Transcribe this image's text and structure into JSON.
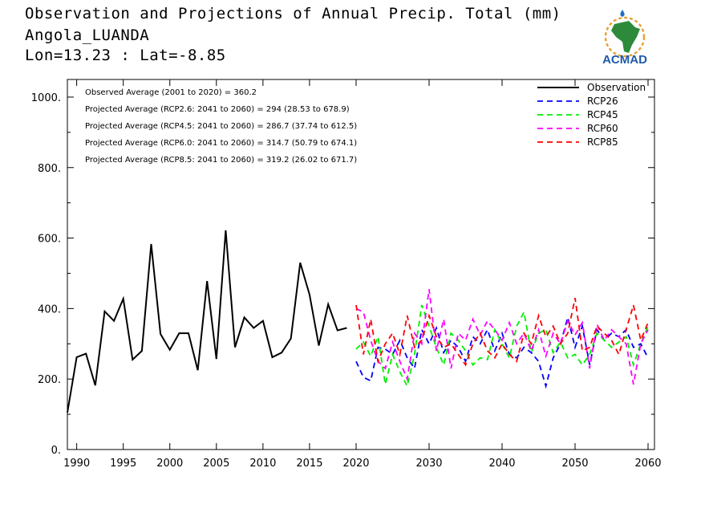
{
  "header": {
    "title": "Observation and Projections of Annual Precip. Total (mm)",
    "location": "Angola_LUANDA",
    "coords": "Lon=13.23 : Lat=-8.85"
  },
  "logo": {
    "text": "ACMAD",
    "icon": "africa-map-logo"
  },
  "colors": {
    "Observation": "#000000",
    "RCP26": "#0000ff",
    "RCP45": "#00ee00",
    "RCP60": "#ff00ff",
    "RCP85": "#ff0000"
  },
  "chart_data": {
    "type": "line",
    "title": "Observation and Projections of Annual Precip. Total (mm)",
    "xlim": [
      1989,
      2060
    ],
    "ylim": [
      0,
      1050
    ],
    "x_ticks": [
      1990,
      1995,
      2000,
      2005,
      2010,
      2015,
      2020,
      2030,
      2040,
      2050,
      2060
    ],
    "y_ticks": [
      0,
      200,
      400,
      600,
      800,
      1000
    ],
    "y_tick_labels": [
      "0.",
      "200.",
      "400.",
      "600.",
      "800.",
      "1000."
    ],
    "legend_position": "top-right",
    "grid": false,
    "annotations": [
      "Observed Average (2001 to 2020) = 360.2",
      "Projected Average (RCP2.6: 2041 to 2060) = 294 (28.53 to 678.9)",
      "Projected Average (RCP4.5: 2041 to 2060) = 286.7 (37.74 to 612.5)",
      "Projected Average (RCP6.0: 2041 to 2060) = 314.7 (50.79 to 674.1)",
      "Projected Average (RCP8.5: 2041 to 2060) = 319.2 (26.02 to 671.7)"
    ],
    "series": [
      {
        "name": "Observation",
        "style": "solid",
        "x": [
          1989,
          1990,
          1991,
          1992,
          1993,
          1994,
          1995,
          1996,
          1997,
          1998,
          1999,
          2000,
          2001,
          2002,
          2003,
          2004,
          2005,
          2006,
          2007,
          2008,
          2009,
          2010,
          2011,
          2012,
          2013,
          2014,
          2015,
          2016,
          2017,
          2018,
          2019
        ],
        "values": [
          105,
          262,
          272,
          182,
          392,
          365,
          428,
          255,
          280,
          583,
          328,
          283,
          330,
          330,
          225,
          478,
          257,
          622,
          290,
          375,
          345,
          365,
          262,
          275,
          315,
          530,
          440,
          295,
          412,
          338,
          345
        ]
      },
      {
        "name": "RCP26",
        "style": "dashed",
        "x": [
          2020,
          2021,
          2022,
          2023,
          2024,
          2025,
          2026,
          2027,
          2028,
          2029,
          2030,
          2031,
          2032,
          2033,
          2034,
          2035,
          2036,
          2037,
          2038,
          2039,
          2040,
          2041,
          2042,
          2043,
          2044,
          2045,
          2046,
          2047,
          2048,
          2049,
          2050,
          2051,
          2052,
          2053,
          2054,
          2055,
          2056,
          2057,
          2058,
          2059,
          2060
        ],
        "values": [
          250,
          205,
          195,
          290,
          285,
          270,
          310,
          260,
          230,
          340,
          300,
          345,
          275,
          310,
          290,
          250,
          320,
          300,
          340,
          280,
          330,
          270,
          260,
          290,
          275,
          250,
          180,
          260,
          300,
          375,
          290,
          350,
          240,
          340,
          310,
          330,
          320,
          340,
          290,
          300,
          260
        ]
      },
      {
        "name": "RCP45",
        "style": "dashed",
        "x": [
          2020,
          2021,
          2022,
          2023,
          2024,
          2025,
          2026,
          2027,
          2028,
          2029,
          2030,
          2031,
          2032,
          2033,
          2034,
          2035,
          2036,
          2037,
          2038,
          2039,
          2040,
          2041,
          2042,
          2043,
          2044,
          2045,
          2046,
          2047,
          2048,
          2049,
          2050,
          2051,
          2052,
          2053,
          2054,
          2055,
          2056,
          2057,
          2058,
          2059,
          2060
        ],
        "values": [
          285,
          305,
          265,
          320,
          185,
          270,
          220,
          180,
          270,
          410,
          350,
          290,
          240,
          330,
          310,
          280,
          240,
          260,
          255,
          340,
          300,
          260,
          350,
          390,
          275,
          330,
          340,
          275,
          305,
          260,
          270,
          240,
          270,
          330,
          310,
          290,
          305,
          320,
          240,
          300,
          350
        ]
      },
      {
        "name": "RCP60",
        "style": "dashed",
        "x": [
          2020,
          2021,
          2022,
          2023,
          2024,
          2025,
          2026,
          2027,
          2028,
          2029,
          2030,
          2031,
          2032,
          2033,
          2034,
          2035,
          2036,
          2037,
          2038,
          2039,
          2040,
          2041,
          2042,
          2043,
          2044,
          2045,
          2046,
          2047,
          2048,
          2049,
          2050,
          2051,
          2052,
          2053,
          2054,
          2055,
          2056,
          2057,
          2058,
          2059,
          2060
        ],
        "values": [
          400,
          390,
          310,
          250,
          230,
          305,
          250,
          200,
          330,
          300,
          455,
          280,
          370,
          230,
          330,
          310,
          370,
          325,
          365,
          340,
          310,
          360,
          300,
          330,
          280,
          340,
          265,
          330,
          300,
          365,
          325,
          360,
          230,
          355,
          310,
          340,
          320,
          300,
          185,
          300,
          340
        ]
      },
      {
        "name": "RCP85",
        "style": "dashed",
        "x": [
          2020,
          2021,
          2022,
          2023,
          2024,
          2025,
          2026,
          2027,
          2028,
          2029,
          2030,
          2031,
          2032,
          2033,
          2034,
          2035,
          2036,
          2037,
          2038,
          2039,
          2040,
          2041,
          2042,
          2043,
          2044,
          2045,
          2046,
          2047,
          2048,
          2049,
          2050,
          2051,
          2052,
          2053,
          2054,
          2055,
          2056,
          2057,
          2058,
          2059,
          2060
        ],
        "values": [
          410,
          270,
          370,
          250,
          300,
          330,
          270,
          380,
          290,
          310,
          380,
          320,
          290,
          300,
          270,
          240,
          300,
          330,
          280,
          260,
          300,
          270,
          250,
          330,
          300,
          380,
          320,
          350,
          300,
          330,
          430,
          280,
          290,
          350,
          330,
          310,
          270,
          340,
          410,
          310,
          360
        ]
      }
    ]
  }
}
